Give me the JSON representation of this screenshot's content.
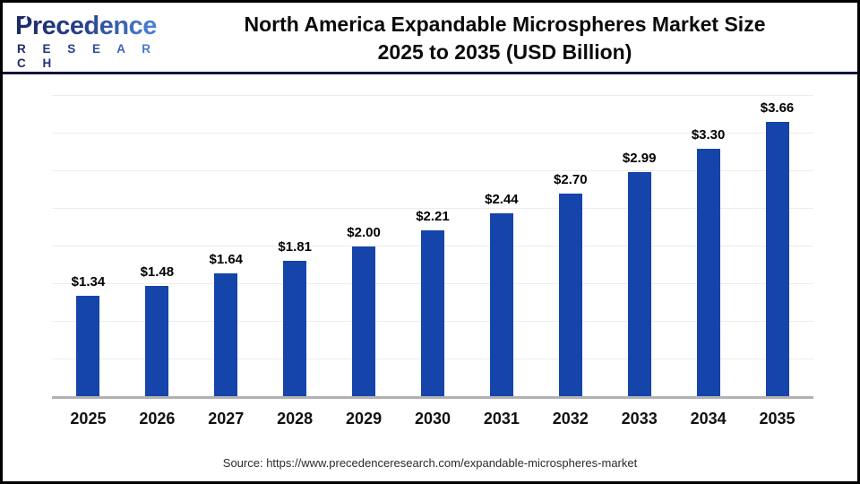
{
  "header": {
    "logo_name": "Precedence",
    "logo_subname": "R E S E A R C H",
    "title_line1": "North America Expandable Microspheres Market Size",
    "title_line2": "2025 to 2035 (USD Billion)"
  },
  "chart_data": {
    "type": "bar",
    "title": "North America Expandable Microspheres Market Size 2025 to 2035 (USD Billion)",
    "categories": [
      "2025",
      "2026",
      "2027",
      "2028",
      "2029",
      "2030",
      "2031",
      "2032",
      "2033",
      "2034",
      "2035"
    ],
    "values": [
      1.34,
      1.48,
      1.64,
      1.81,
      2.0,
      2.21,
      2.44,
      2.7,
      2.99,
      3.3,
      3.66
    ],
    "value_labels": [
      "$1.34",
      "$1.48",
      "$1.64",
      "$1.81",
      "$2.00",
      "$2.21",
      "$2.44",
      "$2.70",
      "$2.99",
      "$3.30",
      "$3.66"
    ],
    "xlabel": "",
    "ylabel": "",
    "ylim": [
      0,
      4
    ],
    "gridline_step": 0.5,
    "grid": true,
    "legend": false,
    "bar_color": "#1544ab",
    "axis_line_color": "#b2b2b4"
  },
  "footer": {
    "source": "Source: https://www.precedenceresearch.com/expandable-microspheres-market"
  }
}
